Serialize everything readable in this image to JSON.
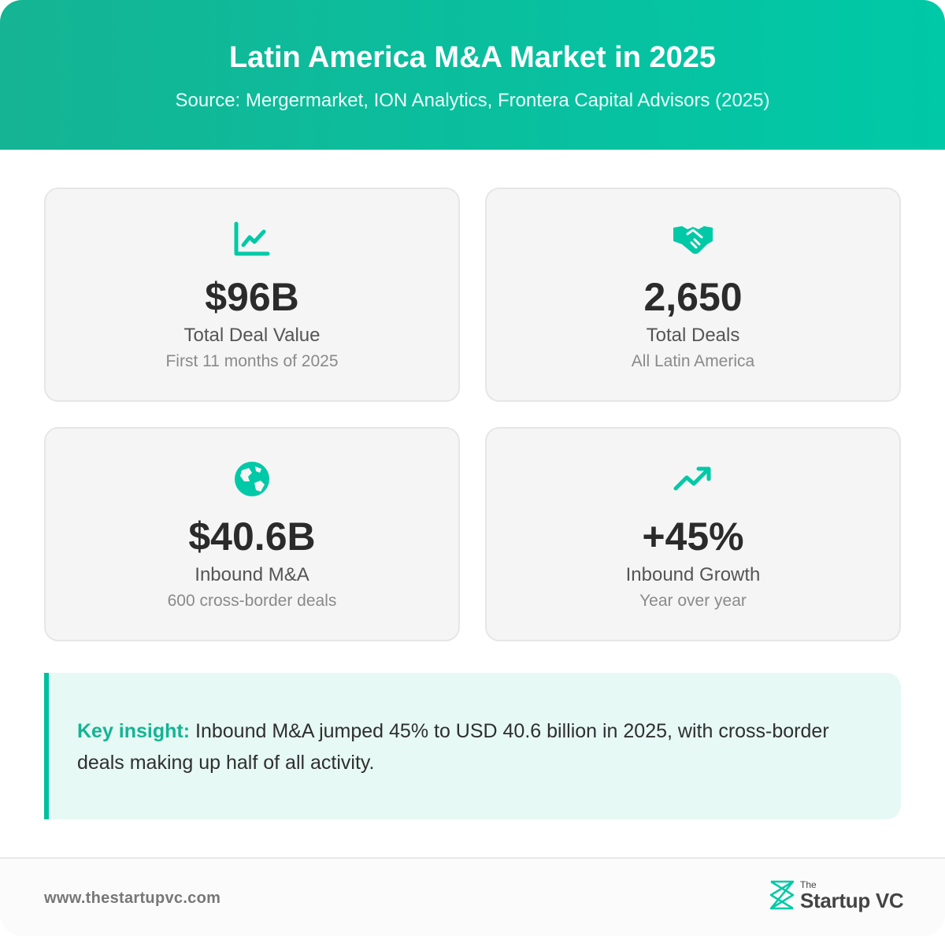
{
  "header": {
    "title": "Latin America M&A Market in 2025",
    "subtitle": "Source: Mergermarket, ION Analytics, Frontera Capital Advisors (2025)"
  },
  "colors": {
    "accent": "#00c9a7",
    "accent_dark": "#14b494",
    "card_bg": "#f5f5f5",
    "insight_bg": "#e6f9f4",
    "text_dark": "#2b2b2b"
  },
  "stats": [
    {
      "icon": "line-chart-icon",
      "value": "$96B",
      "label": "Total Deal Value",
      "sub": "First 11 months of 2025"
    },
    {
      "icon": "handshake-icon",
      "value": "2,650",
      "label": "Total Deals",
      "sub": "All Latin America"
    },
    {
      "icon": "globe-icon",
      "value": "$40.6B",
      "label": "Inbound M&A",
      "sub": "600 cross-border deals"
    },
    {
      "icon": "trending-up-icon",
      "value": "+45%",
      "label": "Inbound Growth",
      "sub": "Year over year"
    }
  ],
  "insight": {
    "label": "Key insight:",
    "text": " Inbound M&A jumped 45% to USD 40.6 billion in 2025, with cross-border deals making up half of all activity."
  },
  "footer": {
    "url": "www.thestartupvc.com",
    "logo_small": "The",
    "logo_name": "Startup VC"
  }
}
